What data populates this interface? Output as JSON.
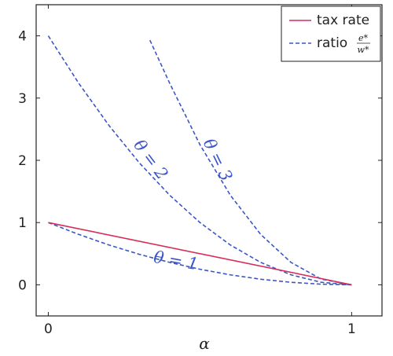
{
  "chart_data": {
    "type": "line",
    "title": "",
    "xlabel": "α",
    "ylabel": "",
    "xlim": [
      -0.04,
      1.1
    ],
    "ylim": [
      -0.5,
      4.5
    ],
    "xticks": [
      0,
      1
    ],
    "yticks": [
      0,
      1,
      2,
      3,
      4
    ],
    "grid": false,
    "legend_position": "top-right",
    "legend": {
      "tax_label": "tax rate",
      "ratio_label": "ratio",
      "ratio_num": "e*",
      "ratio_den": "w*"
    },
    "colors": {
      "tax": "#d62d5b",
      "ratio": "#3b55c9"
    },
    "series": [
      {
        "name": "tax rate",
        "style": "solid",
        "points": [
          [
            0,
            1
          ],
          [
            1,
            0
          ]
        ]
      },
      {
        "name": "θ = 1",
        "style": "dashed",
        "points": [
          [
            0,
            1
          ],
          [
            0.1,
            0.81
          ],
          [
            0.2,
            0.64
          ],
          [
            0.3,
            0.49
          ],
          [
            0.4,
            0.36
          ],
          [
            0.5,
            0.25
          ],
          [
            0.6,
            0.16
          ],
          [
            0.7,
            0.09
          ],
          [
            0.8,
            0.04
          ],
          [
            0.9,
            0.01
          ],
          [
            1,
            0
          ]
        ]
      },
      {
        "name": "θ = 2",
        "style": "dashed",
        "points": [
          [
            0,
            4
          ],
          [
            0.1,
            3.24
          ],
          [
            0.2,
            2.56
          ],
          [
            0.3,
            1.96
          ],
          [
            0.4,
            1.44
          ],
          [
            0.5,
            1.0
          ],
          [
            0.6,
            0.64
          ],
          [
            0.7,
            0.36
          ],
          [
            0.8,
            0.16
          ],
          [
            0.9,
            0.04
          ],
          [
            1,
            0
          ]
        ]
      },
      {
        "name": "θ = 3",
        "style": "dashed",
        "points": [
          [
            0.335,
            3.93
          ],
          [
            0.4,
            3.24
          ],
          [
            0.5,
            2.25
          ],
          [
            0.6,
            1.44
          ],
          [
            0.7,
            0.81
          ],
          [
            0.8,
            0.36
          ],
          [
            0.9,
            0.09
          ],
          [
            1,
            0
          ]
        ]
      }
    ],
    "annotations": [
      {
        "text": "θ = 1",
        "x": 0.42,
        "y": 0.37,
        "angle": 10
      },
      {
        "text": "θ = 2",
        "x": 0.335,
        "y": 2.0,
        "angle": 53
      },
      {
        "text": "θ = 3",
        "x": 0.555,
        "y": 2.0,
        "angle": 64
      }
    ]
  }
}
